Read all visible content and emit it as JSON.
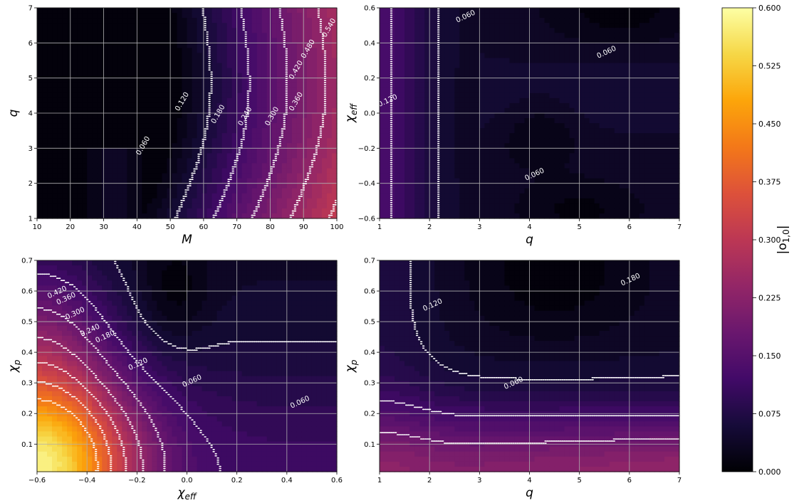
{
  "colors": {
    "colormap": "inferno",
    "contour_line": "#ffffff",
    "grid_line": "#b0b0b0",
    "axis_text": "#000000"
  },
  "colorbar": {
    "label": "|o_{1,0}|",
    "ticks": [
      "0.000",
      "0.075",
      "0.150",
      "0.225",
      "0.300",
      "0.375",
      "0.450",
      "0.525",
      "0.600"
    ],
    "range": [
      0.0,
      0.6
    ]
  },
  "chart_data": [
    {
      "type": "contour",
      "panel": "top-left",
      "xlabel": "M",
      "ylabel": "q",
      "xlim": [
        10,
        100
      ],
      "ylim": [
        1,
        7
      ],
      "xticks": [
        "10",
        "20",
        "30",
        "40",
        "50",
        "60",
        "70",
        "80",
        "90",
        "100"
      ],
      "yticks": [
        "1",
        "2",
        "3",
        "4",
        "5",
        "6",
        "7"
      ],
      "contour_levels": [
        "0.060",
        "0.120",
        "0.180",
        "0.240",
        "0.300",
        "0.360",
        "0.420",
        "0.480",
        "0.540"
      ],
      "value_range": [
        0.0,
        0.56
      ],
      "grid": true
    },
    {
      "type": "contour",
      "panel": "top-right",
      "xlabel": "q",
      "ylabel": "χ_eff",
      "xlim": [
        1,
        7
      ],
      "ylim": [
        -0.6,
        0.6
      ],
      "xticks": [
        "1",
        "2",
        "3",
        "4",
        "5",
        "6",
        "7"
      ],
      "yticks": [
        "−0.6",
        "−0.4",
        "−0.2",
        "0.0",
        "0.2",
        "0.4",
        "0.6"
      ],
      "contour_levels": [
        "0.060",
        "0.060",
        "0.060",
        "0.120"
      ],
      "value_range": [
        0.0,
        0.13
      ],
      "grid": true
    },
    {
      "type": "contour",
      "panel": "bottom-left",
      "xlabel": "χ_eff",
      "ylabel": "χ_p",
      "xlim": [
        -0.6,
        0.6
      ],
      "ylim": [
        0.01,
        0.7
      ],
      "xticks": [
        "−0.6",
        "−0.4",
        "−0.2",
        "0.0",
        "0.2",
        "0.4",
        "0.6"
      ],
      "yticks": [
        "0.1",
        "0.2",
        "0.3",
        "0.4",
        "0.5",
        "0.6",
        "0.7"
      ],
      "contour_levels": [
        "0.060",
        "0.060",
        "0.120",
        "0.180",
        "0.240",
        "0.300",
        "0.360",
        "0.420"
      ],
      "value_range": [
        0.0,
        0.47
      ],
      "grid": true
    },
    {
      "type": "contour",
      "panel": "bottom-right",
      "xlabel": "q",
      "ylabel": "χ_p",
      "xlim": [
        1,
        7
      ],
      "ylim": [
        0.01,
        0.7
      ],
      "xticks": [
        "1",
        "2",
        "3",
        "4",
        "5",
        "6",
        "7"
      ],
      "yticks": [
        "0.1",
        "0.2",
        "0.3",
        "0.4",
        "0.5",
        "0.6",
        "0.7"
      ],
      "contour_levels": [
        "0.060",
        "0.120",
        "0.180"
      ],
      "value_range": [
        0.0,
        0.2
      ],
      "grid": true
    }
  ]
}
